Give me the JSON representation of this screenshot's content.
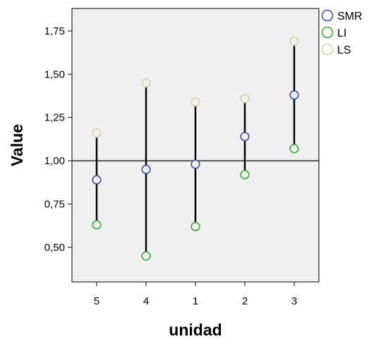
{
  "chart_data": {
    "type": "scatter",
    "xlabel": "unidad",
    "ylabel": "Value",
    "categories": [
      "5",
      "4",
      "1",
      "2",
      "3"
    ],
    "ylim": [
      0.3,
      1.88
    ],
    "yticks": [
      0.5,
      0.75,
      1.0,
      1.25,
      1.5,
      1.75
    ],
    "ytick_labels": [
      "0,50",
      "0,75",
      "1,00",
      "1,25",
      "1,50",
      "1,75"
    ],
    "reference_line": 1.0,
    "error_bars": {
      "low_series": "LI",
      "high_series": "LS",
      "color": "#000000"
    },
    "background": "#f0f0f0",
    "grid": false,
    "legend_position": "right",
    "series": [
      {
        "name": "SMR",
        "color": "#3e4ea0",
        "values": [
          0.89,
          0.95,
          0.98,
          1.14,
          1.38
        ]
      },
      {
        "name": "LI",
        "color": "#3aaa35",
        "values": [
          0.63,
          0.45,
          0.62,
          0.92,
          1.07
        ]
      },
      {
        "name": "LS",
        "color": "#d8d3a4",
        "values": [
          1.16,
          1.45,
          1.34,
          1.36,
          1.69
        ]
      }
    ]
  }
}
